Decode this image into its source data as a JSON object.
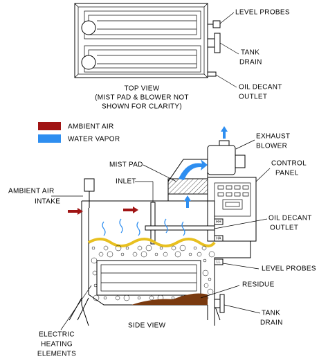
{
  "top_view": {
    "caption": [
      "TOP VIEW",
      "(MIST PAD & BLOWER NOT",
      "SHOWN FOR CLARITY)"
    ],
    "callouts": [
      {
        "lines": [
          "LEVEL PROBES"
        ]
      },
      {
        "lines": [
          "TANK",
          "DRAIN"
        ]
      },
      {
        "lines": [
          "OIL DECANT",
          "OUTLET"
        ]
      }
    ]
  },
  "legend": [
    {
      "label": "AMBIENT AIR",
      "color": "#a01414"
    },
    {
      "label": "WATER VAPOR",
      "color": "#2e8ef0"
    }
  ],
  "side_view": {
    "caption": "SIDE VIEW",
    "callouts": [
      {
        "lines": [
          "EXHAUST",
          "BLOWER"
        ]
      },
      {
        "lines": [
          "CONTROL",
          "PANEL"
        ]
      },
      {
        "lines": [
          "MIST PAD"
        ]
      },
      {
        "lines": [
          "INLET"
        ]
      },
      {
        "lines": [
          "AMBIENT AIR",
          "INTAKE"
        ]
      },
      {
        "lines": [
          "OIL DECANT",
          "OUTLET"
        ]
      },
      {
        "lines": [
          "LEVEL PROBES"
        ]
      },
      {
        "lines": [
          "RESIDUE"
        ]
      },
      {
        "lines": [
          "TANK",
          "DRAIN"
        ]
      },
      {
        "lines": [
          "ELECTRIC",
          "HEATING",
          "ELEMENTS"
        ]
      }
    ],
    "probe_tags": [
      "HH",
      "HA",
      "LL"
    ]
  }
}
